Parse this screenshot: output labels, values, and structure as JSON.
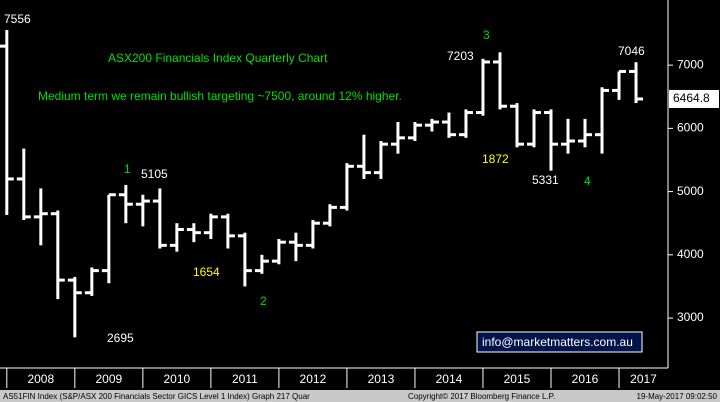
{
  "chart_data": {
    "type": "ohlc",
    "title": "ASX200 Financials Index Quarterly Chart",
    "subtitle": "Medium term we remain bullish targeting ~7500, around 12% higher.",
    "x": [
      2008,
      2008.25,
      2008.5,
      2008.75,
      2009,
      2009.25,
      2009.5,
      2009.75,
      2010,
      2010.25,
      2010.5,
      2010.75,
      2011,
      2011.25,
      2011.5,
      2011.75,
      2012,
      2012.25,
      2012.5,
      2012.75,
      2013,
      2013.25,
      2013.5,
      2013.75,
      2014,
      2014.25,
      2014.5,
      2014.75,
      2015,
      2015.25,
      2015.5,
      2015.75,
      2016,
      2016.25,
      2016.5,
      2016.75,
      2017,
      2017.25
    ],
    "open": [
      7300,
      5200,
      4600,
      4650,
      3600,
      3400,
      3750,
      4950,
      4800,
      4850,
      4150,
      4400,
      4350,
      4600,
      4300,
      3750,
      3900,
      4200,
      4150,
      4500,
      4750,
      5400,
      5300,
      5750,
      5850,
      6050,
      6100,
      5900,
      6250,
      7050,
      6350,
      5750,
      6250,
      5750,
      5800,
      5900,
      6600,
      6900
    ],
    "high": [
      7556,
      5680,
      5050,
      4700,
      3650,
      3800,
      4950,
      5105,
      4950,
      5050,
      4500,
      4500,
      4650,
      4650,
      4350,
      4000,
      4250,
      4350,
      4550,
      4800,
      5450,
      5900,
      5800,
      6100,
      6100,
      6150,
      6250,
      6300,
      7100,
      7203,
      6400,
      6300,
      6300,
      6150,
      6150,
      6650,
      6900,
      7046
    ],
    "low": [
      4630,
      4550,
      4150,
      3300,
      2695,
      3350,
      3550,
      4500,
      4450,
      4100,
      4050,
      4200,
      4250,
      4100,
      3500,
      3700,
      3850,
      3900,
      4100,
      4450,
      4700,
      5200,
      5200,
      5600,
      5800,
      5950,
      5850,
      5850,
      6200,
      6300,
      5700,
      5700,
      5331,
      5600,
      5700,
      5600,
      6450,
      6400
    ],
    "close": [
      5200,
      4600,
      4650,
      3600,
      3400,
      3750,
      4950,
      4800,
      4850,
      4150,
      4400,
      4350,
      4600,
      4300,
      3750,
      3900,
      4200,
      4150,
      4500,
      4750,
      5400,
      5300,
      5750,
      5850,
      6050,
      6100,
      5900,
      6250,
      7050,
      6350,
      5750,
      6250,
      5750,
      5800,
      5900,
      6600,
      6900,
      6464.8
    ],
    "color": "#ffffff",
    "xlim": [
      2007.9,
      2017.72
    ],
    "xticks": [
      {
        "value": 2008,
        "label": "2008"
      },
      {
        "value": 2009,
        "label": "2009"
      },
      {
        "value": 2010,
        "label": "2010"
      },
      {
        "value": 2011,
        "label": "2011"
      },
      {
        "value": 2012,
        "label": "2012"
      },
      {
        "value": 2013,
        "label": "2013"
      },
      {
        "value": 2014,
        "label": "2014"
      },
      {
        "value": 2015,
        "label": "2015"
      },
      {
        "value": 2016,
        "label": "2016"
      },
      {
        "value": 2017,
        "label": "2017"
      }
    ],
    "ylim": [
      2210,
      8030
    ],
    "yticks": [
      3000,
      4000,
      5000,
      6000,
      7000
    ],
    "last_price": 6464.8,
    "annotations": [
      "7556",
      "1",
      "5105",
      "2695",
      "1654",
      "2",
      "7203",
      "3",
      "1872",
      "5331",
      "4",
      "7046"
    ],
    "email": "info@marketmatters.com.au",
    "footer": [
      "AS51FIN Index (S&P/ASX 200 Financials Sector GICS Level 1 Index) Graph 217  Quar",
      "Copyright© 2017 Bloomberg Finance L.P.",
      "19-May-2017 09:02:50"
    ]
  }
}
